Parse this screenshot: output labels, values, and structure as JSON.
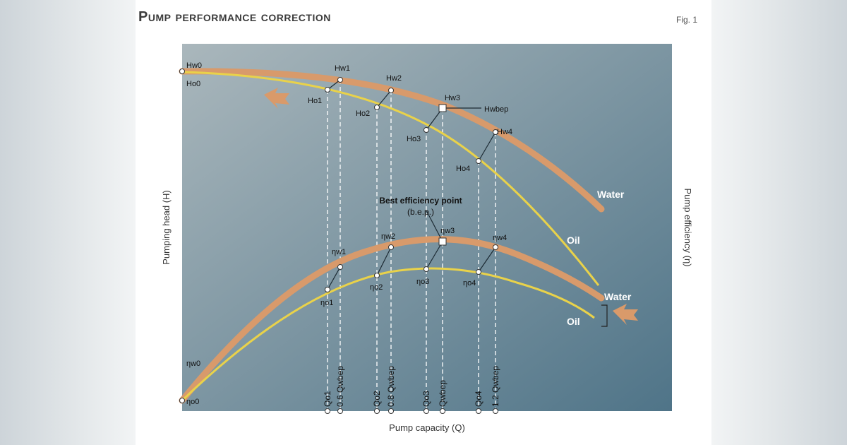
{
  "figure": {
    "title": "Pump performance correction",
    "fig_label": "Fig. 1",
    "y_label_left": "Pumping head (H)",
    "y_label_right": "Pump efficiency (η)",
    "x_label": "Pump capacity (Q)"
  },
  "colors": {
    "title": "#3b3b3b",
    "plot_top_left": "#aab7bc",
    "plot_bottom": "#4f7488",
    "water_curve": "#d89a6b",
    "oil_curve": "#e9d24a",
    "guide": "#ffffff",
    "arrow": "#d99a6a"
  },
  "curves": {
    "water_head": "Water",
    "oil_head": "Oil",
    "water_eff": "Water",
    "oil_eff": "Oil"
  },
  "head_labels": {
    "hw0": "Hw0",
    "ho0": "Ho0",
    "hw1": "Hw1",
    "ho1": "Ho1",
    "hw2": "Hw2",
    "ho2": "Ho2",
    "hw3": "Hw3",
    "ho3": "Ho3",
    "hwbep": "Hwbep",
    "hw4": "Hw4",
    "ho4": "Ho4"
  },
  "eff_labels": {
    "nw0": "ηw0",
    "no0": "ηo0",
    "nw1": "ηw1",
    "no1": "ηo1",
    "nw2": "ηw2",
    "no2": "ηo2",
    "nw3": "ηw3",
    "no3": "ηo3",
    "nw4": "ηw4",
    "no4": "ηo4"
  },
  "bep_label_line1": "Best efficiency point",
  "bep_label_line2": "(b.e.p.)",
  "x_ticks": [
    "Qo1",
    "0.6 Qwbep",
    "Qo2",
    "0.8 Qwbep",
    "Qo3",
    "Qwbep",
    "Qo4",
    "1.2 Qwbep"
  ]
}
